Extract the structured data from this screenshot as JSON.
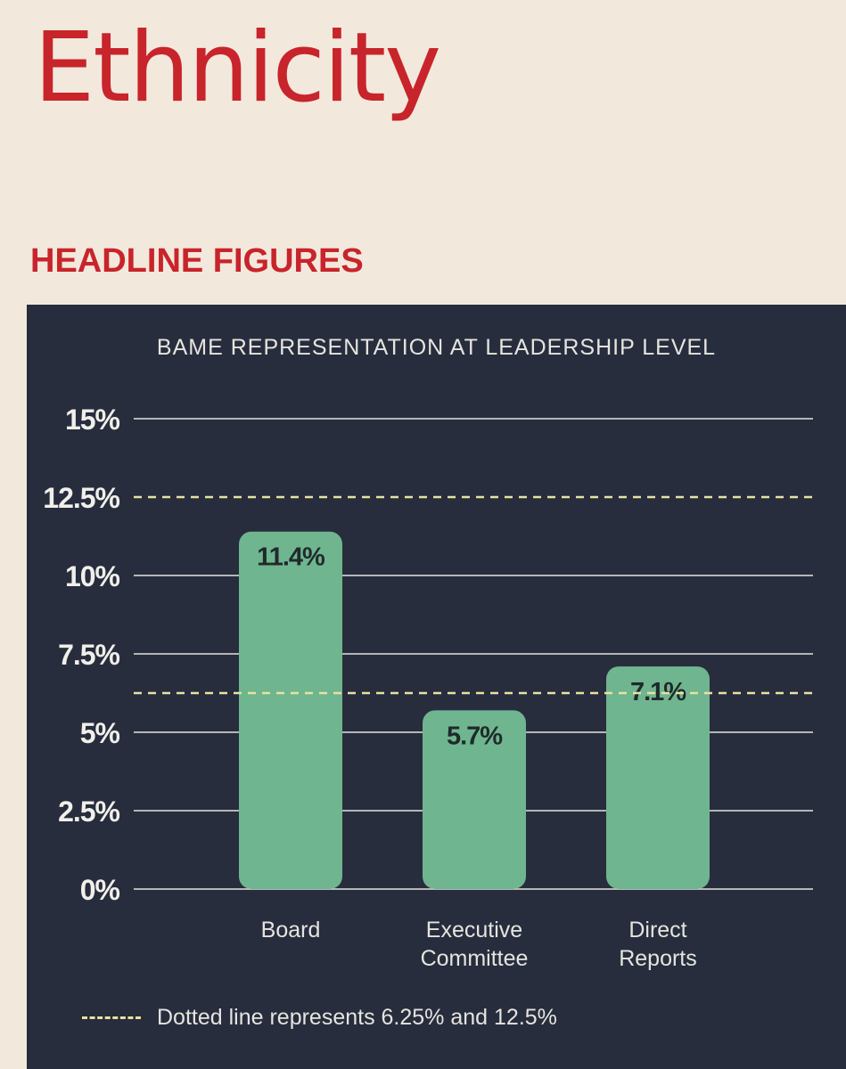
{
  "header": {
    "title": "Ethnicity",
    "subtitle": "HEADLINE FIGURES"
  },
  "legend": {
    "text": "Dotted line represents 6.25% and 12.5%"
  },
  "colors": {
    "title_red": "#c8242b",
    "panel_bg": "#272d3d",
    "bar": "#6fb58f",
    "grid": "#e6e4df",
    "dashed": "#e8e2a0"
  },
  "chart_data": {
    "type": "bar",
    "title": "BAME REPRESENTATION AT LEADERSHIP LEVEL",
    "categories": [
      [
        "Board"
      ],
      [
        "Executive",
        "Committee"
      ],
      [
        "Direct",
        "Reports"
      ]
    ],
    "values": [
      11.4,
      5.7,
      7.1
    ],
    "value_labels": [
      "11.4%",
      "5.7%",
      "7.1%"
    ],
    "ylim": [
      0,
      15
    ],
    "yticks": [
      0,
      2.5,
      5,
      7.5,
      10,
      12.5,
      15
    ],
    "ytick_labels": [
      "0%",
      "2.5%",
      "5%",
      "7.5%",
      "10%",
      "12.5%",
      "15%"
    ],
    "reference_lines": [
      6.25,
      12.5
    ],
    "grid": true,
    "legend_position": "bottom-left"
  }
}
